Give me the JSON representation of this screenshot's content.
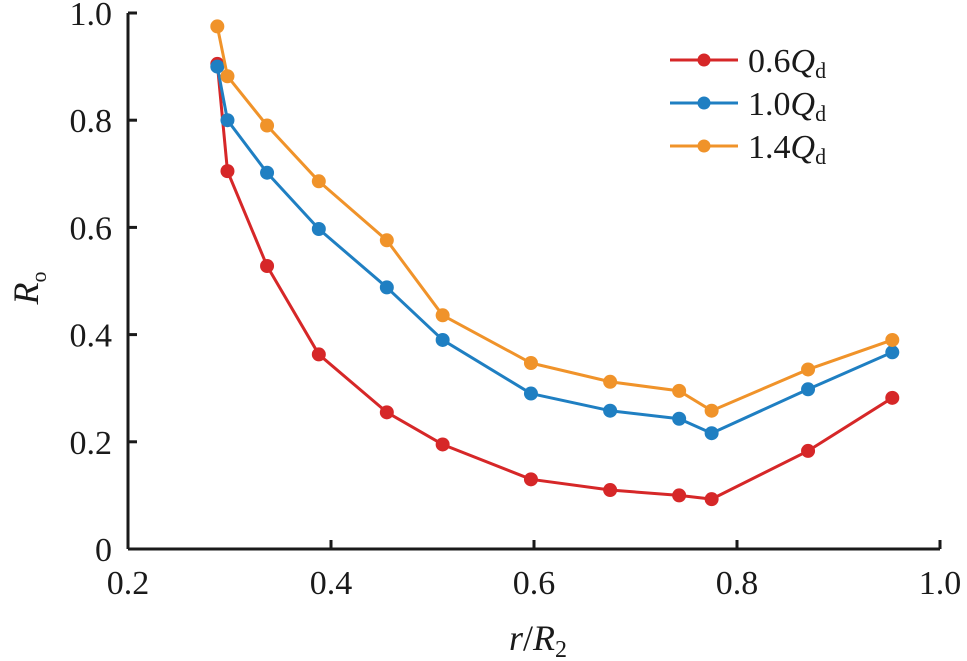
{
  "chart_data": {
    "type": "line",
    "title": "",
    "xlabel": {
      "main": "r",
      "sep": "/",
      "var": "R",
      "sub": "2"
    },
    "ylabel": {
      "var": "R",
      "sub": "o"
    },
    "xlim": [
      0.2,
      1.0
    ],
    "ylim": [
      0,
      1.0
    ],
    "xticks": [
      "0.2",
      "0.4",
      "0.6",
      "0.8",
      "1.0"
    ],
    "yticks": [
      "0",
      "0.2",
      "0.4",
      "0.6",
      "0.8",
      "1.0"
    ],
    "x": [
      0.288,
      0.298,
      0.337,
      0.388,
      0.455,
      0.51,
      0.597,
      0.675,
      0.743,
      0.775,
      0.87,
      0.953
    ],
    "series": [
      {
        "name": "0.6Qd",
        "label_num": "0.6",
        "label_var": "Q",
        "label_sub": "d",
        "color": "#d62728",
        "values": [
          0.905,
          0.705,
          0.528,
          0.363,
          0.255,
          0.195,
          0.13,
          0.11,
          0.1,
          0.093,
          0.183,
          0.282
        ]
      },
      {
        "name": "1.0Qd",
        "label_num": "1.0",
        "label_var": "Q",
        "label_sub": "d",
        "color": "#1f7fc2",
        "values": [
          0.9,
          0.8,
          0.702,
          0.597,
          0.488,
          0.39,
          0.29,
          0.258,
          0.243,
          0.216,
          0.298,
          0.367
        ]
      },
      {
        "name": "1.4Qd",
        "label_num": "1.4",
        "label_var": "Q",
        "label_sub": "d",
        "color": "#f0932a",
        "values": [
          0.975,
          0.882,
          0.79,
          0.686,
          0.576,
          0.436,
          0.347,
          0.312,
          0.295,
          0.258,
          0.335,
          0.39
        ]
      }
    ],
    "grid": false,
    "legend_position": "top-right"
  }
}
